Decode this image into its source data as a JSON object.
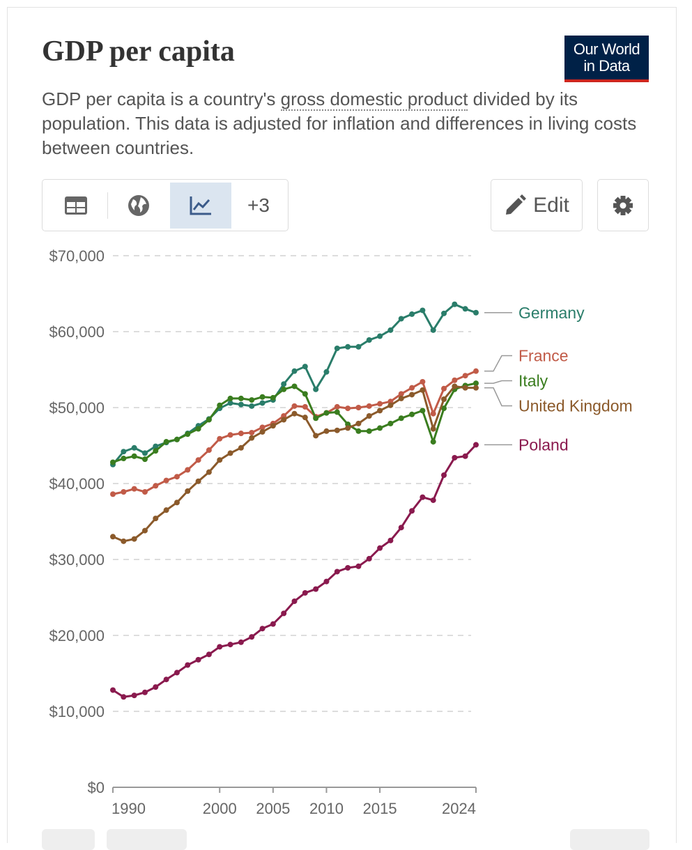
{
  "header": {
    "title": "GDP per capita",
    "logo": [
      "Our World",
      "in Data"
    ]
  },
  "subtitle": {
    "before": "GDP per capita is a country's ",
    "link": "gross domestic product",
    "after": " divided by its population. This data is adjusted for inflation and differences in living costs between countries."
  },
  "toolbar": {
    "more_tabs": "+3",
    "edit": "Edit"
  },
  "chart_data": {
    "type": "line",
    "x": [
      1990,
      1991,
      1992,
      1993,
      1994,
      1995,
      1996,
      1997,
      1998,
      1999,
      2000,
      2001,
      2002,
      2003,
      2004,
      2005,
      2006,
      2007,
      2008,
      2009,
      2010,
      2011,
      2012,
      2013,
      2014,
      2015,
      2016,
      2017,
      2018,
      2019,
      2020,
      2021,
      2022,
      2023,
      2024
    ],
    "xlim": [
      1990,
      2024
    ],
    "xticks": [
      1990,
      2000,
      2005,
      2010,
      2015,
      2024
    ],
    "ylim": [
      0,
      70000
    ],
    "yticks": [
      {
        "value": 0,
        "label": "$0"
      },
      {
        "value": 10000,
        "label": "$10,000"
      },
      {
        "value": 20000,
        "label": "$20,000"
      },
      {
        "value": 30000,
        "label": "$30,000"
      },
      {
        "value": 40000,
        "label": "$40,000"
      },
      {
        "value": 50000,
        "label": "$50,000"
      },
      {
        "value": 60000,
        "label": "$60,000"
      },
      {
        "value": 70000,
        "label": "$70,000"
      }
    ],
    "grid": true,
    "series": [
      {
        "name": "Germany",
        "color": "#2a7d6a",
        "values": [
          42500,
          44200,
          44700,
          44000,
          44900,
          45400,
          45800,
          46600,
          47600,
          48500,
          49900,
          50600,
          50400,
          50200,
          50600,
          51000,
          53100,
          54800,
          55400,
          52400,
          54700,
          57800,
          58000,
          58000,
          58900,
          59400,
          60200,
          61700,
          62300,
          62800,
          60200,
          62400,
          63600,
          63000,
          62500
        ]
      },
      {
        "name": "France",
        "color": "#c15b48",
        "values": [
          38600,
          38900,
          39300,
          38900,
          39700,
          40400,
          40900,
          41800,
          43100,
          44400,
          45900,
          46400,
          46600,
          46700,
          47400,
          47900,
          48900,
          50200,
          50100,
          48800,
          49300,
          50100,
          49900,
          50000,
          50200,
          50500,
          50800,
          51800,
          52600,
          53400,
          49200,
          52500,
          53600,
          54200,
          54800
        ]
      },
      {
        "name": "Italy",
        "color": "#3a7d1f",
        "values": [
          42800,
          43300,
          43600,
          43200,
          44300,
          45500,
          45800,
          46500,
          47200,
          48400,
          50300,
          51200,
          51200,
          51000,
          51400,
          51300,
          52400,
          52800,
          51800,
          48600,
          49300,
          49400,
          47800,
          46900,
          46900,
          47300,
          47900,
          48600,
          49100,
          49600,
          45500,
          49900,
          52400,
          52900,
          53200
        ]
      },
      {
        "name": "United Kingdom",
        "color": "#8b5a2b",
        "values": [
          33000,
          32400,
          32700,
          33800,
          35400,
          36500,
          37500,
          39000,
          40300,
          41500,
          43100,
          44000,
          44700,
          46000,
          46800,
          47600,
          48400,
          49200,
          48700,
          46300,
          46900,
          47000,
          47300,
          47900,
          48900,
          49600,
          50300,
          51200,
          51700,
          52300,
          47200,
          51100,
          52800,
          52600,
          52600
        ]
      },
      {
        "name": "Poland",
        "color": "#8a1a4e",
        "values": [
          12800,
          11900,
          12100,
          12500,
          13200,
          14200,
          15100,
          16100,
          16800,
          17500,
          18500,
          18800,
          19100,
          19800,
          20900,
          21500,
          22900,
          24500,
          25600,
          26100,
          27100,
          28400,
          28900,
          29100,
          30100,
          31500,
          32500,
          34200,
          36400,
          38200,
          37800,
          41100,
          43400,
          43600,
          45100
        ]
      }
    ]
  }
}
